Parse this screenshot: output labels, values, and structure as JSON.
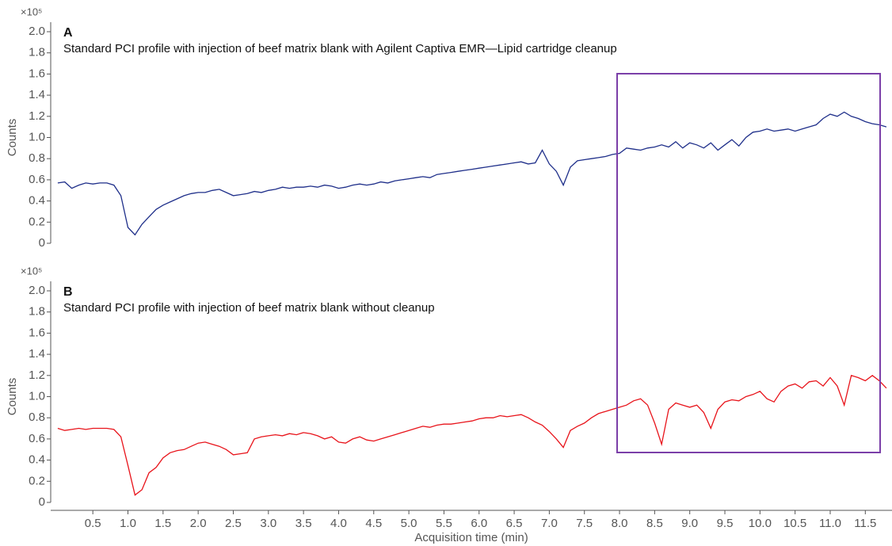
{
  "chart_data": [
    {
      "type": "line",
      "panel_label": "A",
      "title": "Standard PCI profile with injection of beef matrix blank with Agilent Captiva EMR—Lipid cartridge cleanup",
      "y_label": "Counts",
      "y_exponent": "×10⁵",
      "x": [
        0,
        0.1,
        0.2,
        0.3,
        0.4,
        0.5,
        0.6,
        0.7,
        0.8,
        0.9,
        1,
        1.1,
        1.2,
        1.3,
        1.4,
        1.5,
        1.6,
        1.7,
        1.8,
        1.9,
        2,
        2.1,
        2.2,
        2.3,
        2.4,
        2.5,
        2.6,
        2.7,
        2.8,
        2.9,
        3,
        3.1,
        3.2,
        3.3,
        3.4,
        3.5,
        3.6,
        3.7,
        3.8,
        3.9,
        4,
        4.1,
        4.2,
        4.3,
        4.4,
        4.5,
        4.6,
        4.7,
        4.8,
        4.9,
        5,
        5.1,
        5.2,
        5.3,
        5.4,
        5.5,
        5.6,
        5.7,
        5.8,
        5.9,
        6,
        6.1,
        6.2,
        6.3,
        6.4,
        6.5,
        6.6,
        6.7,
        6.8,
        6.9,
        7,
        7.1,
        7.2,
        7.3,
        7.4,
        7.5,
        7.6,
        7.7,
        7.8,
        7.9,
        8,
        8.1,
        8.2,
        8.3,
        8.4,
        8.5,
        8.6,
        8.7,
        8.8,
        8.9,
        9,
        9.1,
        9.2,
        9.3,
        9.4,
        9.5,
        9.6,
        9.7,
        9.8,
        9.9,
        10,
        10.1,
        10.2,
        10.3,
        10.4,
        10.5,
        10.6,
        10.7,
        10.8,
        10.9,
        11,
        11.1,
        11.2,
        11.3,
        11.4,
        11.5,
        11.6,
        11.7,
        11.8
      ],
      "series": [
        {
          "color": "#1f2f8a",
          "values": [
            0.57,
            0.58,
            0.52,
            0.55,
            0.57,
            0.56,
            0.57,
            0.57,
            0.55,
            0.45,
            0.15,
            0.08,
            0.18,
            0.25,
            0.32,
            0.36,
            0.39,
            0.42,
            0.45,
            0.47,
            0.48,
            0.48,
            0.5,
            0.51,
            0.48,
            0.45,
            0.46,
            0.47,
            0.49,
            0.48,
            0.5,
            0.51,
            0.53,
            0.52,
            0.53,
            0.53,
            0.54,
            0.53,
            0.55,
            0.54,
            0.52,
            0.53,
            0.55,
            0.56,
            0.55,
            0.56,
            0.58,
            0.57,
            0.59,
            0.6,
            0.61,
            0.62,
            0.63,
            0.62,
            0.65,
            0.66,
            0.67,
            0.68,
            0.69,
            0.7,
            0.71,
            0.72,
            0.73,
            0.74,
            0.75,
            0.76,
            0.77,
            0.75,
            0.76,
            0.88,
            0.75,
            0.68,
            0.55,
            0.72,
            0.78,
            0.79,
            0.8,
            0.81,
            0.82,
            0.84,
            0.85,
            0.9,
            0.89,
            0.88,
            0.9,
            0.91,
            0.93,
            0.91,
            0.96,
            0.9,
            0.95,
            0.93,
            0.9,
            0.95,
            0.88,
            0.93,
            0.98,
            0.92,
            1.0,
            1.05,
            1.06,
            1.08,
            1.06,
            1.07,
            1.08,
            1.06,
            1.08,
            1.1,
            1.12,
            1.18,
            1.22,
            1.2,
            1.24,
            1.2,
            1.18,
            1.15,
            1.13,
            1.12,
            1.1
          ]
        }
      ],
      "xlim": [
        -0.1,
        11.88
      ],
      "ylim": [
        0,
        2.0
      ],
      "yticks": [
        0,
        0.2,
        0.4,
        0.6,
        0.8,
        {
          "value": 1,
          "label": "1.0"
        },
        1.2,
        1.4,
        1.6,
        1.8,
        {
          "value": 2,
          "label": "2.0"
        }
      ]
    },
    {
      "type": "line",
      "panel_label": "B",
      "title": "Standard PCI profile with injection of beef matrix blank without cleanup",
      "y_label": "Counts",
      "y_exponent": "×10⁵",
      "x_label": "Acquisition time (min)",
      "x": [
        0,
        0.1,
        0.2,
        0.3,
        0.4,
        0.5,
        0.6,
        0.7,
        0.8,
        0.9,
        1,
        1.1,
        1.2,
        1.3,
        1.4,
        1.5,
        1.6,
        1.7,
        1.8,
        1.9,
        2,
        2.1,
        2.2,
        2.3,
        2.4,
        2.5,
        2.6,
        2.7,
        2.8,
        2.9,
        3,
        3.1,
        3.2,
        3.3,
        3.4,
        3.5,
        3.6,
        3.7,
        3.8,
        3.9,
        4,
        4.1,
        4.2,
        4.3,
        4.4,
        4.5,
        4.6,
        4.7,
        4.8,
        4.9,
        5,
        5.1,
        5.2,
        5.3,
        5.4,
        5.5,
        5.6,
        5.7,
        5.8,
        5.9,
        6,
        6.1,
        6.2,
        6.3,
        6.4,
        6.5,
        6.6,
        6.7,
        6.8,
        6.9,
        7,
        7.1,
        7.2,
        7.3,
        7.4,
        7.5,
        7.6,
        7.7,
        7.8,
        7.9,
        8,
        8.1,
        8.2,
        8.3,
        8.4,
        8.5,
        8.6,
        8.7,
        8.8,
        8.9,
        9,
        9.1,
        9.2,
        9.3,
        9.4,
        9.5,
        9.6,
        9.7,
        9.8,
        9.9,
        10,
        10.1,
        10.2,
        10.3,
        10.4,
        10.5,
        10.6,
        10.7,
        10.8,
        10.9,
        11,
        11.1,
        11.2,
        11.3,
        11.4,
        11.5,
        11.6,
        11.7,
        11.8
      ],
      "series": [
        {
          "color": "#e8141b",
          "values": [
            0.7,
            0.68,
            0.69,
            0.7,
            0.69,
            0.7,
            0.7,
            0.7,
            0.69,
            0.62,
            0.35,
            0.07,
            0.12,
            0.28,
            0.33,
            0.42,
            0.47,
            0.49,
            0.5,
            0.53,
            0.56,
            0.57,
            0.55,
            0.53,
            0.5,
            0.45,
            0.46,
            0.47,
            0.6,
            0.62,
            0.63,
            0.64,
            0.63,
            0.65,
            0.64,
            0.66,
            0.65,
            0.63,
            0.6,
            0.62,
            0.57,
            0.56,
            0.6,
            0.62,
            0.59,
            0.58,
            0.6,
            0.62,
            0.64,
            0.66,
            0.68,
            0.7,
            0.72,
            0.71,
            0.73,
            0.74,
            0.74,
            0.75,
            0.76,
            0.77,
            0.79,
            0.8,
            0.8,
            0.82,
            0.81,
            0.82,
            0.83,
            0.8,
            0.76,
            0.73,
            0.67,
            0.6,
            0.52,
            0.68,
            0.72,
            0.75,
            0.8,
            0.84,
            0.86,
            0.88,
            0.9,
            0.92,
            0.96,
            0.98,
            0.92,
            0.75,
            0.55,
            0.88,
            0.94,
            0.92,
            0.9,
            0.92,
            0.85,
            0.7,
            0.88,
            0.95,
            0.97,
            0.96,
            1.0,
            1.02,
            1.05,
            0.98,
            0.95,
            1.05,
            1.1,
            1.12,
            1.08,
            1.14,
            1.15,
            1.1,
            1.18,
            1.1,
            0.92,
            1.2,
            1.18,
            1.15,
            1.2,
            1.15,
            1.08
          ]
        }
      ],
      "xlim": [
        -0.1,
        11.88
      ],
      "ylim": [
        0,
        2.0
      ],
      "xticks": [
        0.5,
        {
          "value": 1,
          "label": "1.0"
        },
        1.5,
        {
          "value": 2,
          "label": "2.0"
        },
        2.5,
        {
          "value": 3,
          "label": "3.0"
        },
        3.5,
        {
          "value": 4,
          "label": "4.0"
        },
        4.5,
        {
          "value": 5,
          "label": "5.0"
        },
        5.5,
        {
          "value": 6,
          "label": "6.0"
        },
        6.5,
        {
          "value": 7,
          "label": "7.0"
        },
        7.5,
        {
          "value": 8,
          "label": "8.0"
        },
        8.5,
        {
          "value": 9,
          "label": "9.0"
        },
        9.5,
        {
          "value": 10,
          "label": "10.0"
        },
        10.5,
        {
          "value": 11,
          "label": "11.0"
        },
        11.5
      ],
      "yticks": [
        0,
        0.2,
        0.4,
        0.6,
        0.8,
        {
          "value": 1,
          "label": "1.0"
        },
        1.2,
        1.4,
        1.6,
        1.8,
        {
          "value": 2,
          "label": "2.0"
        }
      ]
    }
  ]
}
